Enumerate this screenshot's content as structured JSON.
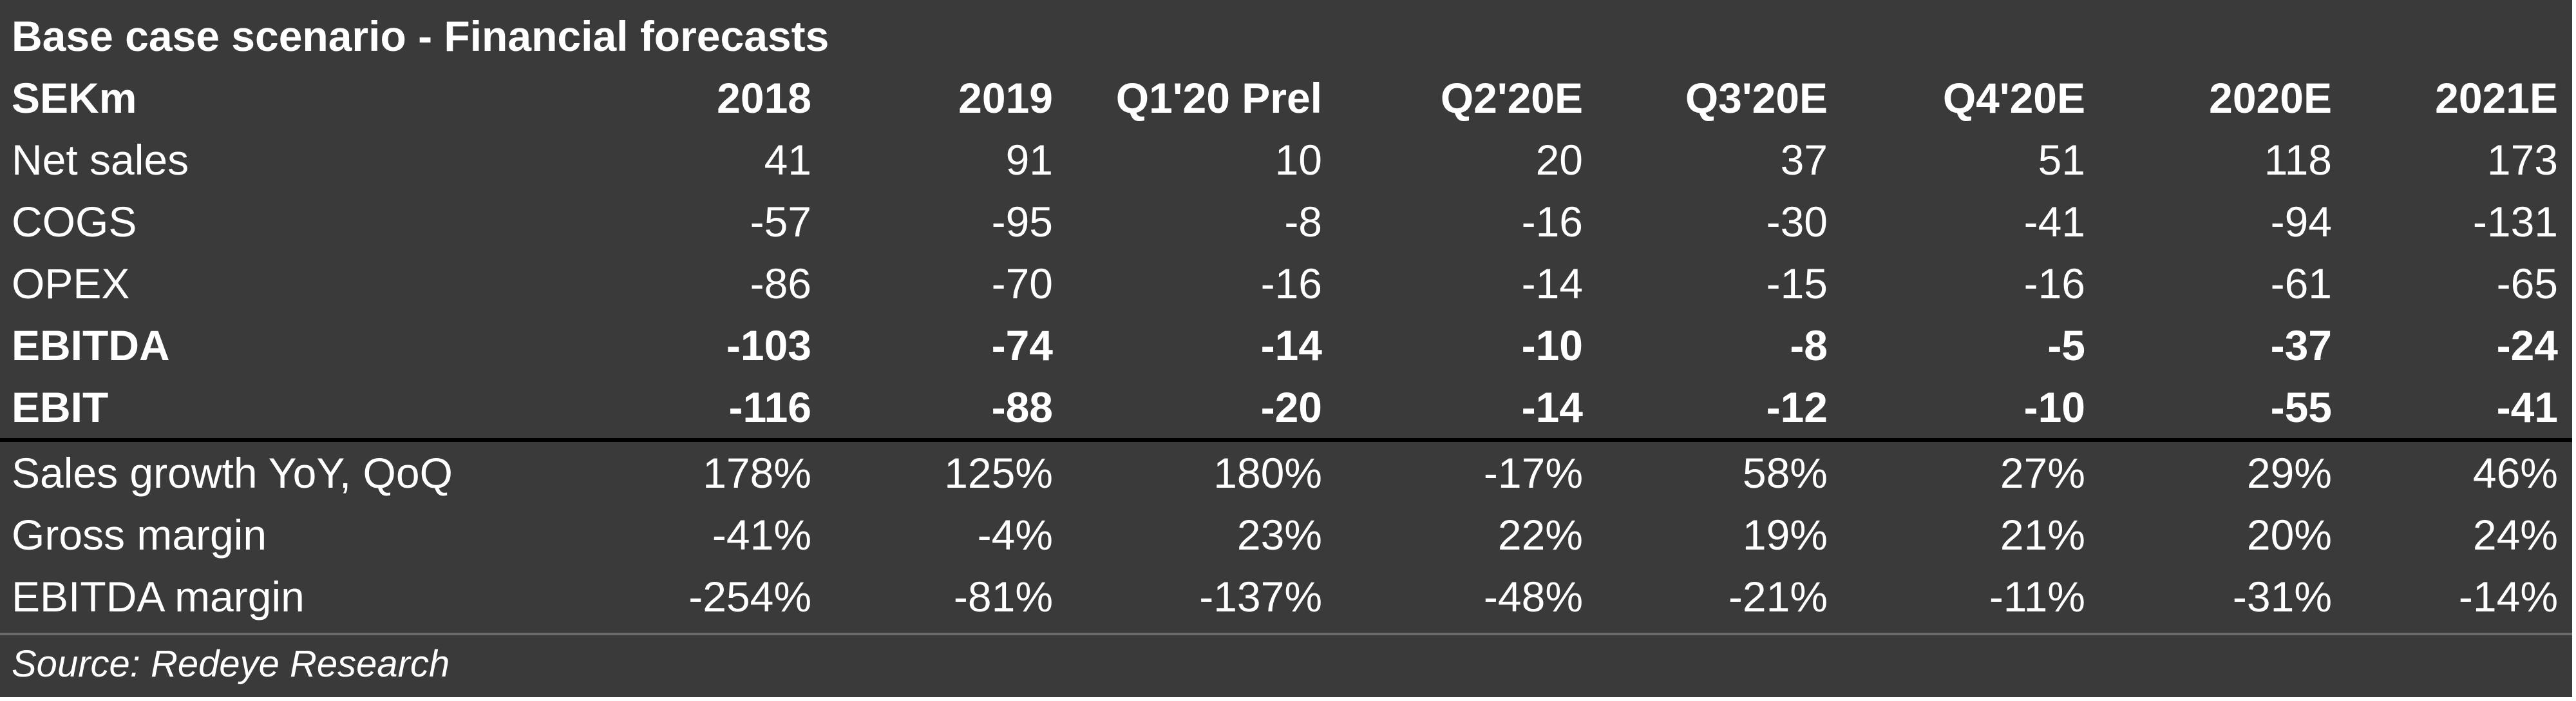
{
  "title": "Base case scenario - Financial forecasts",
  "table": {
    "unit_label": "SEKm",
    "columns": [
      "2018",
      "2019",
      "Q1'20 Prel",
      "Q2'20E",
      "Q3'20E",
      "Q4'20E",
      "2020E",
      "2021E"
    ],
    "rows": [
      {
        "label": "Net sales",
        "values": [
          "41",
          "91",
          "10",
          "20",
          "37",
          "51",
          "118",
          "173"
        ]
      },
      {
        "label": "COGS",
        "values": [
          "-57",
          "-95",
          "-8",
          "-16",
          "-30",
          "-41",
          "-94",
          "-131"
        ]
      },
      {
        "label": "OPEX",
        "values": [
          "-86",
          "-70",
          "-16",
          "-14",
          "-15",
          "-16",
          "-61",
          "-65"
        ]
      },
      {
        "label": "EBITDA",
        "values": [
          "-103",
          "-74",
          "-14",
          "-10",
          "-8",
          "-5",
          "-37",
          "-24"
        ]
      },
      {
        "label": "EBIT",
        "values": [
          "-116",
          "-88",
          "-20",
          "-14",
          "-12",
          "-10",
          "-55",
          "-41"
        ]
      },
      {
        "label": "Sales growth YoY, QoQ",
        "values": [
          "178%",
          "125%",
          "180%",
          "-17%",
          "58%",
          "27%",
          "29%",
          "46%"
        ]
      },
      {
        "label": "Gross margin",
        "values": [
          "-41%",
          "-4%",
          "23%",
          "22%",
          "19%",
          "21%",
          "20%",
          "24%"
        ]
      },
      {
        "label": "EBITDA margin",
        "values": [
          "-254%",
          "-81%",
          "-137%",
          "-48%",
          "-21%",
          "-11%",
          "-31%",
          "-14%"
        ]
      }
    ]
  },
  "source": "Source: Redeye Research"
}
